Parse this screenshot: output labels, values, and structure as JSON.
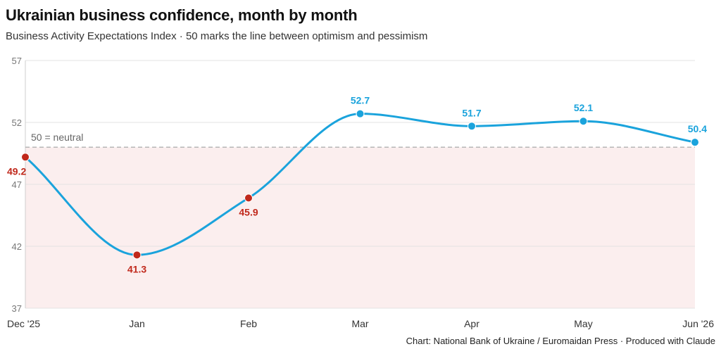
{
  "title": "Ukrainian business confidence, month by month",
  "subtitle": "Business Activity Expectations Index · 50 marks the line between optimism and pessimism",
  "source": "Chart: National Bank of Ukraine / Euromaidan Press · Produced with Claude",
  "colors": {
    "optimism": "#1aa3dc",
    "pessimism": "#c0281b",
    "pessimism_zone": "#fbeeee",
    "neutral_line": "#b0b0b0",
    "grid": "#e3e3e3",
    "axis_text": "#777777"
  },
  "chart_data": {
    "type": "line",
    "categories": [
      "Dec '25",
      "Jan",
      "Feb",
      "Mar",
      "Apr",
      "May",
      "Jun '26"
    ],
    "series": [
      {
        "values": [
          49.2,
          41.3,
          45.9,
          52.7,
          51.7,
          52.1,
          50.4
        ],
        "data_labels": [
          "49.2",
          "41.3",
          "45.9",
          "52.7",
          "51.7",
          "52.1",
          "50.4"
        ]
      }
    ],
    "ylim": [
      37,
      57
    ],
    "yticks": [
      37,
      42,
      47,
      52,
      57
    ],
    "reference_line": {
      "value": 50,
      "label": "50 = neutral"
    },
    "shaded_zone": "below 50",
    "grid": true,
    "xlabel": "",
    "ylabel": ""
  }
}
